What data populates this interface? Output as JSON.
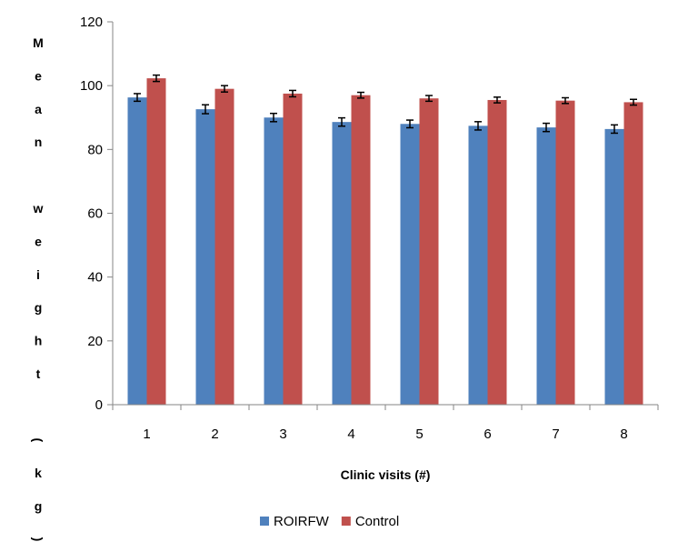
{
  "chart_data": {
    "type": "bar",
    "xlabel": "Clinic visits (#)",
    "ylabel": "Mean weight (kg)",
    "ylim": [
      0,
      120
    ],
    "yticks": [
      "0",
      "20",
      "40",
      "60",
      "80",
      "100",
      "120"
    ],
    "categories": [
      "1",
      "2",
      "3",
      "4",
      "5",
      "6",
      "7",
      "8"
    ],
    "series": [
      {
        "name": "ROIRFW",
        "color": "#4F81BD",
        "values": [
          96.3,
          92.6,
          90.0,
          88.6,
          88.0,
          87.4,
          86.9,
          86.4
        ],
        "errors": [
          1.2,
          1.4,
          1.3,
          1.3,
          1.2,
          1.3,
          1.3,
          1.3
        ]
      },
      {
        "name": "Control",
        "color": "#C0504D",
        "values": [
          102.3,
          99.0,
          97.5,
          97.0,
          96.0,
          95.5,
          95.3,
          94.8
        ],
        "errors": [
          1.0,
          1.0,
          1.0,
          0.9,
          0.9,
          0.9,
          0.9,
          0.9
        ]
      }
    ],
    "legend_position": "bottom",
    "grid": false
  }
}
